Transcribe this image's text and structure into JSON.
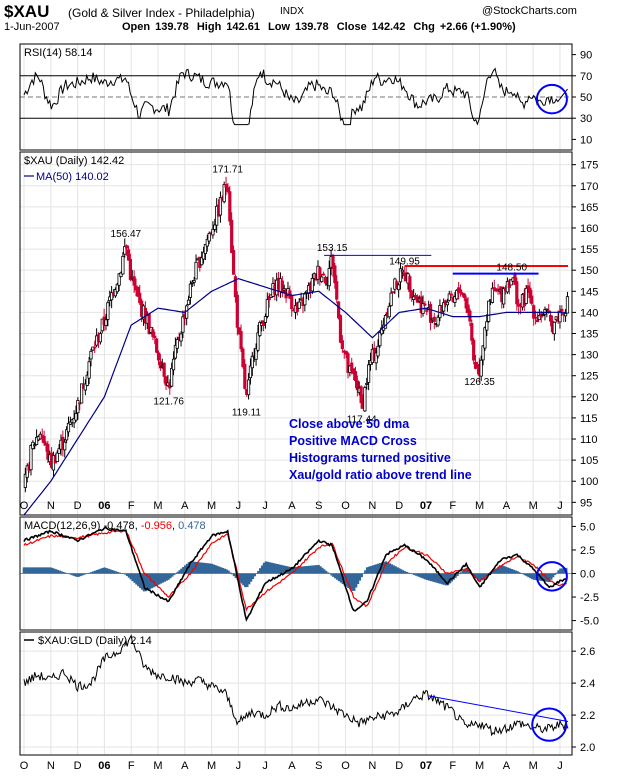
{
  "header": {
    "symbol": "$XAU",
    "subtitle": "(Gold & Silver Index - Philadelphia)",
    "exchange": "INDX",
    "copyright": "@StockCharts.com",
    "date": "1-Jun-2007",
    "quote": {
      "open_label": "Open",
      "open": "139.78",
      "high_label": "High",
      "high": "142.61",
      "low_label": "Low",
      "low": "139.78",
      "close_label": "Close",
      "close": "142.42",
      "chg_label": "Chg",
      "chg": "+2.66 (+1.90%)"
    }
  },
  "annotations": [
    "Close above 50 dma",
    "Positive MACD Cross",
    "Histograms turned positive",
    "Xau/gold ratio above trend line"
  ],
  "colors": {
    "price_up": "#000000",
    "price_down": "#cc0033",
    "ma": "#00008b",
    "macd": "#000000",
    "signal": "#ee0000",
    "histogram": "#336699",
    "annotation": "#0000cc",
    "circle": "#0000ff",
    "resistance_red": "#ff0000",
    "resistance_blue": "#0000ff"
  },
  "chart_data": [
    {
      "type": "line",
      "panel": "RSI",
      "legend": "RSI(14) 58.14",
      "y_ticks": [
        10,
        30,
        50,
        70,
        90
      ],
      "ylim": [
        0,
        100
      ],
      "reference_lines": [
        30,
        50,
        70
      ],
      "last_value": 58.14
    },
    {
      "type": "candlestick",
      "panel": "price",
      "legend": [
        "$XAU (Daily) 142.42",
        "MA(50) 140.02"
      ],
      "x_labels": [
        "O",
        "N",
        "D",
        "06",
        "F",
        "M",
        "A",
        "M",
        "J",
        "J",
        "A",
        "S",
        "O",
        "N",
        "D",
        "07",
        "F",
        "M",
        "A",
        "M",
        "J"
      ],
      "y_ticks": [
        95,
        100,
        105,
        110,
        115,
        120,
        125,
        130,
        135,
        140,
        145,
        150,
        155,
        160,
        165,
        170,
        175
      ],
      "ylim": [
        92,
        178
      ],
      "close": 142.42,
      "ma50": 140.02,
      "peak_labels": [
        {
          "label": "156.47",
          "month_index": 3.8,
          "value": 156.47
        },
        {
          "label": "171.71",
          "month_index": 7.6,
          "value": 171.71
        },
        {
          "label": "153.15",
          "month_index": 11.5,
          "value": 153.15
        },
        {
          "label": "149.95",
          "month_index": 14.2,
          "value": 149.95
        },
        {
          "label": "148.50",
          "month_index": 18.2,
          "value": 148.5
        }
      ],
      "trough_labels": [
        {
          "label": "121.76",
          "month_index": 5.4,
          "value": 121.76
        },
        {
          "label": "119.11",
          "month_index": 8.3,
          "value": 119.11
        },
        {
          "label": "117.44",
          "month_index": 12.6,
          "value": 117.44
        },
        {
          "label": "126.35",
          "month_index": 17.0,
          "value": 126.35
        }
      ],
      "resistance_red": {
        "value": 151,
        "from_month_index": 14.2,
        "to_month_index": 20.3
      },
      "resistance_blue_1": {
        "value": 153.5,
        "from_month_index": 11.2,
        "to_month_index": 15.2
      },
      "resistance_blue_2": {
        "value": 149.2,
        "from_month_index": 16.0,
        "to_month_index": 19.2
      },
      "price_series": {
        "month_index": [
          0.0,
          0.3,
          0.6,
          1.0,
          1.5,
          2.0,
          2.5,
          3.0,
          3.3,
          3.6,
          3.8,
          4.0,
          4.3,
          4.6,
          4.9,
          5.2,
          5.4,
          5.7,
          6.0,
          6.3,
          6.7,
          7.0,
          7.3,
          7.6,
          7.8,
          8.0,
          8.3,
          8.6,
          9.0,
          9.4,
          9.8,
          10.2,
          10.6,
          11.0,
          11.3,
          11.5,
          11.8,
          12.1,
          12.4,
          12.6,
          12.9,
          13.2,
          13.5,
          13.8,
          14.2,
          14.5,
          14.8,
          15.1,
          15.4,
          15.7,
          16.0,
          16.3,
          16.6,
          16.8,
          17.0,
          17.2,
          17.5,
          17.8,
          18.0,
          18.2,
          18.5,
          18.8,
          19.1,
          19.4,
          19.7,
          20.0,
          20.3
        ],
        "value": [
          98,
          108,
          112,
          104,
          110,
          118,
          130,
          138,
          145,
          150,
          156.5,
          148,
          142,
          138,
          132,
          127,
          122,
          132,
          140,
          148,
          155,
          160,
          165,
          171.7,
          150,
          135,
          119.1,
          132,
          140,
          147,
          145,
          140,
          145,
          150,
          148,
          153.2,
          135,
          126,
          124,
          117.4,
          128,
          132,
          140,
          146,
          150,
          145,
          142,
          140,
          138,
          143,
          142,
          146,
          140,
          128,
          126.4,
          137,
          145,
          144,
          147,
          148.5,
          141,
          145,
          139,
          140,
          137,
          139.8,
          142.4
        ]
      },
      "ma50_series": {
        "month_index": [
          0.0,
          1.0,
          2.0,
          3.0,
          4.0,
          5.0,
          6.0,
          7.0,
          8.0,
          9.0,
          10.0,
          11.0,
          12.0,
          13.0,
          14.0,
          15.0,
          16.0,
          17.0,
          18.0,
          19.0,
          20.3
        ],
        "value": [
          92,
          100,
          110,
          120,
          137,
          141,
          140,
          145,
          148,
          146,
          144,
          145,
          140,
          134,
          140,
          141,
          139,
          139,
          140,
          140,
          140.02
        ]
      }
    },
    {
      "type": "line",
      "panel": "MACD",
      "legend": {
        "label": "MACD(12,26,9)",
        "macd": "-0.478",
        "signal": "-0.956",
        "histogram": "0.478"
      },
      "y_ticks": [
        "-5.0",
        "-2.5",
        "0.0",
        "2.5",
        "5.0"
      ],
      "ylim": [
        -6,
        6
      ],
      "series": [
        {
          "name": "MACD",
          "month_index": [
            0,
            1,
            2,
            3,
            3.8,
            4.5,
            5.4,
            6.2,
            7.0,
            7.6,
            8.3,
            9.0,
            10.0,
            11.0,
            11.5,
            12.3,
            12.8,
            13.5,
            14.2,
            15.0,
            15.8,
            16.5,
            17.0,
            17.8,
            18.4,
            19.0,
            19.6,
            20.0,
            20.3
          ],
          "value": [
            3.5,
            4.5,
            3.5,
            4.8,
            4.5,
            -1.5,
            -3.0,
            1.0,
            4.0,
            4.5,
            -5.0,
            -1.0,
            0.5,
            3.5,
            3.0,
            -4.0,
            -3.0,
            2.0,
            3.0,
            1.5,
            -1.0,
            1.0,
            -1.5,
            1.5,
            2.0,
            0.5,
            -1.5,
            -0.8,
            -0.478
          ]
        },
        {
          "name": "Signal",
          "month_index": [
            0,
            1,
            2,
            3,
            3.8,
            4.5,
            5.4,
            6.2,
            7.0,
            7.6,
            8.3,
            9.0,
            10.0,
            11.0,
            11.5,
            12.3,
            12.8,
            13.5,
            14.2,
            15.0,
            15.8,
            16.5,
            17.0,
            17.8,
            18.4,
            19.0,
            19.6,
            20.0,
            20.3
          ],
          "value": [
            3.0,
            4.0,
            3.8,
            4.3,
            4.6,
            0.0,
            -2.5,
            0.0,
            3.2,
            4.2,
            -3.8,
            -2.0,
            0.0,
            2.8,
            3.2,
            -2.5,
            -3.5,
            1.0,
            2.8,
            2.0,
            0.0,
            0.5,
            -0.8,
            0.8,
            1.8,
            1.0,
            -0.8,
            -1.2,
            -0.956
          ]
        }
      ]
    },
    {
      "type": "line",
      "panel": "ratio",
      "legend": "$XAU:GLD (Daily) 2.14",
      "y_ticks": [
        "2.0",
        "2.2",
        "2.4",
        "2.6"
      ],
      "ylim": [
        1.95,
        2.72
      ],
      "last_value": 2.14,
      "series": [
        {
          "name": "$XAU:GLD",
          "month_index": [
            0.0,
            0.5,
            1.0,
            1.5,
            2.0,
            2.5,
            3.0,
            3.5,
            4.0,
            4.5,
            5.0,
            5.5,
            6.0,
            6.5,
            7.0,
            7.5,
            8.0,
            8.5,
            9.0,
            9.5,
            10.0,
            10.5,
            11.0,
            11.5,
            12.0,
            12.5,
            13.0,
            13.5,
            14.0,
            14.5,
            15.0,
            15.5,
            16.0,
            16.5,
            17.0,
            17.5,
            18.0,
            18.5,
            19.0,
            19.5,
            20.0,
            20.3
          ],
          "value": [
            2.4,
            2.45,
            2.42,
            2.47,
            2.38,
            2.4,
            2.55,
            2.6,
            2.68,
            2.5,
            2.45,
            2.44,
            2.4,
            2.42,
            2.38,
            2.34,
            2.15,
            2.22,
            2.2,
            2.26,
            2.24,
            2.28,
            2.3,
            2.25,
            2.2,
            2.15,
            2.18,
            2.2,
            2.22,
            2.3,
            2.33,
            2.28,
            2.22,
            2.12,
            2.15,
            2.1,
            2.12,
            2.15,
            2.12,
            2.11,
            2.14,
            2.14
          ]
        }
      ],
      "trend_line": {
        "from": [
          15.1,
          2.32
        ],
        "to": [
          20.3,
          2.16
        ]
      }
    }
  ]
}
